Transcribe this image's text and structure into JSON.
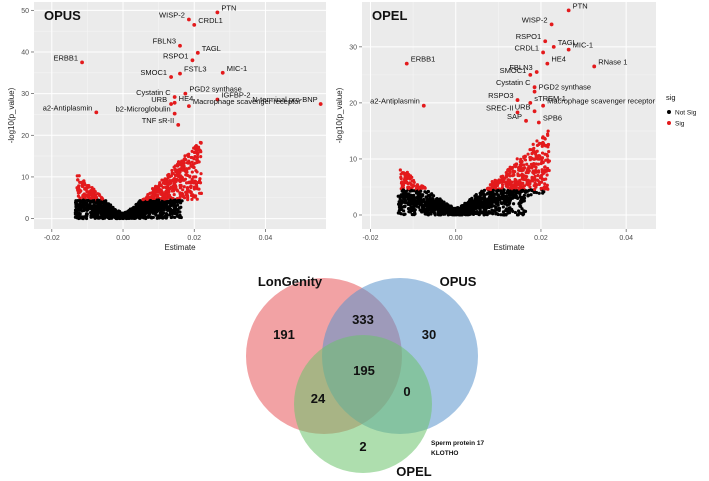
{
  "chart_data": [
    {
      "type": "scatter",
      "panel": "OPUS",
      "title": "OPUS",
      "xlabel": "Estimate",
      "ylabel": "-log10(p_value)",
      "xlim": [
        -0.025,
        0.057
      ],
      "ylim": [
        -2.5,
        52
      ],
      "xticks": [
        -0.02,
        0.0,
        0.02,
        0.04
      ],
      "xtick_labels": [
        "-0.02",
        "0.00",
        "0.02",
        "0.04"
      ],
      "yticks": [
        0,
        10,
        20,
        30,
        40,
        50
      ],
      "ytick_labels": [
        "0",
        "10",
        "20",
        "30",
        "40",
        "50"
      ],
      "grid": true,
      "background": "#ebebeb",
      "point_colors": {
        "Not Sig": "#000000",
        "Sig": "#e31a1c"
      },
      "labeled_points": [
        {
          "label": "PTN",
          "x": 0.0265,
          "y": 49.5
        },
        {
          "label": "WISP-2",
          "x": 0.0185,
          "y": 47.8
        },
        {
          "label": "CRDL1",
          "x": 0.02,
          "y": 46.5
        },
        {
          "label": "FBLN3",
          "x": 0.016,
          "y": 41.5
        },
        {
          "label": "TAGL",
          "x": 0.021,
          "y": 39.8
        },
        {
          "label": "ERBB1",
          "x": -0.0115,
          "y": 37.5
        },
        {
          "label": "RSPO1",
          "x": 0.0195,
          "y": 38.0
        },
        {
          "label": "MIC-1",
          "x": 0.028,
          "y": 35.0
        },
        {
          "label": "SMOC1",
          "x": 0.0135,
          "y": 34.0
        },
        {
          "label": "FSTL3",
          "x": 0.016,
          "y": 34.8
        },
        {
          "label": "PGD2 synthase",
          "x": 0.0175,
          "y": 30.0
        },
        {
          "label": "Cystatin C",
          "x": 0.0145,
          "y": 29.2
        },
        {
          "label": "IGFBP-2",
          "x": 0.0265,
          "y": 28.6
        },
        {
          "label": "URB",
          "x": 0.0135,
          "y": 27.5
        },
        {
          "label": "HE4",
          "x": 0.0145,
          "y": 27.8
        },
        {
          "label": "N-terminal pro-BNP",
          "x": 0.0555,
          "y": 27.5
        },
        {
          "label": "a2-Antiplasmin",
          "x": -0.0075,
          "y": 25.5
        },
        {
          "label": "b2-Microglobulin",
          "x": 0.0145,
          "y": 25.2
        },
        {
          "label": "Macrophage scavenger receptor",
          "x": 0.0185,
          "y": 27.0
        },
        {
          "label": "TNF sR-II",
          "x": 0.0155,
          "y": 22.5
        }
      ]
    },
    {
      "type": "scatter",
      "panel": "OPEL",
      "title": "OPEL",
      "xlabel": "Estimate",
      "ylabel": "-log10(p_value)",
      "xlim": [
        -0.022,
        0.047
      ],
      "ylim": [
        -2.5,
        38
      ],
      "xticks": [
        -0.02,
        0.0,
        0.02,
        0.04
      ],
      "xtick_labels": [
        "-0.02",
        "0.00",
        "0.02",
        "0.04"
      ],
      "yticks": [
        0,
        10,
        20,
        30
      ],
      "ytick_labels": [
        "0",
        "10",
        "20",
        "30"
      ],
      "grid": true,
      "background": "#ebebeb",
      "point_colors": {
        "Not Sig": "#000000",
        "Sig": "#e31a1c"
      },
      "labeled_points": [
        {
          "label": "PTN",
          "x": 0.0265,
          "y": 36.5
        },
        {
          "label": "WISP-2",
          "x": 0.0225,
          "y": 34.0
        },
        {
          "label": "RSPO1",
          "x": 0.021,
          "y": 31.0
        },
        {
          "label": "CRDL1",
          "x": 0.0205,
          "y": 29.0
        },
        {
          "label": "TAGL",
          "x": 0.023,
          "y": 30.0
        },
        {
          "label": "MIC-1",
          "x": 0.0265,
          "y": 29.5
        },
        {
          "label": "ERBB1",
          "x": -0.0115,
          "y": 27.0
        },
        {
          "label": "HE4",
          "x": 0.0215,
          "y": 27.0
        },
        {
          "label": "RNase 1",
          "x": 0.0325,
          "y": 26.5
        },
        {
          "label": "SMOC1",
          "x": 0.0175,
          "y": 25.0
        },
        {
          "label": "FBLN3",
          "x": 0.019,
          "y": 25.5
        },
        {
          "label": "Cystatin C",
          "x": 0.0185,
          "y": 22.8
        },
        {
          "label": "PGD2 synthase",
          "x": 0.0185,
          "y": 22.0
        },
        {
          "label": "a2-Antiplasmin",
          "x": -0.0075,
          "y": 19.5
        },
        {
          "label": "RSPO3",
          "x": 0.0145,
          "y": 20.5
        },
        {
          "label": "sTREM-1",
          "x": 0.0175,
          "y": 20.0
        },
        {
          "label": "Macrophage scavenger receptor",
          "x": 0.0205,
          "y": 19.5
        },
        {
          "label": "SREC-II",
          "x": 0.0145,
          "y": 18.3
        },
        {
          "label": "URB",
          "x": 0.0185,
          "y": 18.5
        },
        {
          "label": "SAP",
          "x": 0.0165,
          "y": 16.8
        },
        {
          "label": "SPB6",
          "x": 0.0195,
          "y": 16.5
        }
      ],
      "legend": {
        "title": "sig",
        "position": "right",
        "entries": [
          {
            "label": "Not Sig",
            "color": "#000000"
          },
          {
            "label": "Sig",
            "color": "#e31a1c"
          }
        ]
      }
    },
    {
      "type": "venn",
      "sets": [
        {
          "name": "LonGenity",
          "color": "#e8555a"
        },
        {
          "name": "OPUS",
          "color": "#5a93cc"
        },
        {
          "name": "OPEL",
          "color": "#6cc36c"
        }
      ],
      "regions": [
        {
          "sets": [
            "LonGenity"
          ],
          "value": 191
        },
        {
          "sets": [
            "OPUS"
          ],
          "value": 30
        },
        {
          "sets": [
            "OPEL"
          ],
          "value": 2
        },
        {
          "sets": [
            "LonGenity",
            "OPUS"
          ],
          "value": 333
        },
        {
          "sets": [
            "LonGenity",
            "OPEL"
          ],
          "value": 24
        },
        {
          "sets": [
            "OPUS",
            "OPEL"
          ],
          "value": 0
        },
        {
          "sets": [
            "LonGenity",
            "OPUS",
            "OPEL"
          ],
          "value": 195
        }
      ],
      "annotation": [
        "Sperm protein 17",
        "KLOTHO"
      ]
    }
  ]
}
